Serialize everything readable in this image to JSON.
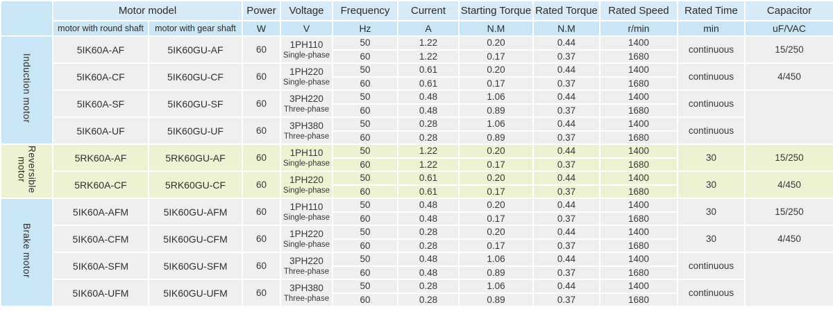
{
  "colors": {
    "blue_top": "#d6eaf7",
    "blue": "#c9e6f7",
    "gray": "#efefef",
    "green": "#edf2d0",
    "grid": "#ffffff",
    "text": "#2e2e2e"
  },
  "header": {
    "motor_model": "Motor model",
    "round_shaft": "motor with round shaft",
    "gear_shaft": "motor with gear shaft",
    "columns": [
      "Power",
      "Voltage",
      "Frequency",
      "Current",
      "Starting Torque",
      "Rated Torque",
      "Rated Speed",
      "Rated Time",
      "Capacitor"
    ],
    "units": [
      "W",
      "V",
      "Hz",
      "A",
      "N.M",
      "N.M",
      "r/min",
      "min",
      "uF/VAC"
    ]
  },
  "sections": [
    {
      "id": "induction",
      "label": "Induction motor",
      "theme": "gray",
      "label_theme": "blue",
      "groups": [
        {
          "round": "5IK60A-AF",
          "gear": "5IK60GU-AF",
          "power": "60",
          "voltage": "1PH110",
          "phase": "Single-phase",
          "rows": [
            [
              "50",
              "1.22",
              "0.20",
              "0.44",
              "1400"
            ],
            [
              "60",
              "1.22",
              "0.17",
              "0.37",
              "1680"
            ]
          ],
          "time": "continuous",
          "cap": "15/250",
          "cap_span": 2
        },
        {
          "round": "5IK60A-CF",
          "gear": "5IK60GU-CF",
          "power": "60",
          "voltage": "1PH220",
          "phase": "Single-phase",
          "rows": [
            [
              "50",
              "0.61",
              "0.20",
              "0.44",
              "1400"
            ],
            [
              "60",
              "0.61",
              "0.17",
              "0.37",
              "1680"
            ]
          ],
          "time": "continuous",
          "cap": "4/450",
          "cap_span": 2
        },
        {
          "round": "5IK60A-SF",
          "gear": "5IK60GU-SF",
          "power": "60",
          "voltage": "3PH220",
          "phase": "Three-phase",
          "rows": [
            [
              "50",
              "0.48",
              "1.06",
              "0.44",
              "1400"
            ],
            [
              "60",
              "0.48",
              "0.89",
              "0.37",
              "1680"
            ]
          ],
          "time": "continuous",
          "cap": "",
          "cap_span": 4
        },
        {
          "round": "5IK60A-UF",
          "gear": "5IK60GU-UF",
          "power": "60",
          "voltage": "3PH380",
          "phase": "Three-phase",
          "rows": [
            [
              "50",
              "0.28",
              "1.06",
              "0.44",
              "1400"
            ],
            [
              "60",
              "0.28",
              "0.89",
              "0.37",
              "1680"
            ]
          ],
          "time": "continuous",
          "cap": null
        }
      ]
    },
    {
      "id": "reversible",
      "label": "Reversible\nmotor",
      "theme": "green",
      "label_theme": "green",
      "groups": [
        {
          "round": "5RK60A-AF",
          "gear": "5RK60GU-AF",
          "power": "60",
          "voltage": "1PH110",
          "phase": "Single-phase",
          "rows": [
            [
              "50",
              "1.22",
              "0.20",
              "0.44",
              "1400"
            ],
            [
              "60",
              "1.22",
              "0.17",
              "0.37",
              "1680"
            ]
          ],
          "time": "30",
          "cap": "15/250",
          "cap_span": 2
        },
        {
          "round": "5RK60A-CF",
          "gear": "5RK60GU-CF",
          "power": "60",
          "voltage": "1PH220",
          "phase": "Single-phase",
          "rows": [
            [
              "50",
              "0.61",
              "0.20",
              "0.44",
              "1400"
            ],
            [
              "60",
              "0.61",
              "0.17",
              "0.37",
              "1680"
            ]
          ],
          "time": "30",
          "cap": "4/450",
          "cap_span": 2
        }
      ]
    },
    {
      "id": "brake",
      "label": "Brake motor",
      "theme": "gray",
      "label_theme": "blue",
      "groups": [
        {
          "round": "5IK60A-AFM",
          "gear": "5IK60GU-AFM",
          "power": "60",
          "voltage": "1PH110",
          "phase": "Single-phase",
          "rows": [
            [
              "50",
              "0.48",
              "0.20",
              "0.44",
              "1400"
            ],
            [
              "60",
              "0.48",
              "0.17",
              "0.37",
              "1680"
            ]
          ],
          "time": "30",
          "cap": "15/250",
          "cap_span": 2
        },
        {
          "round": "5IK60A-CFM",
          "gear": "5IK60GU-CFM",
          "power": "60",
          "voltage": "1PH220",
          "phase": "Single-phase",
          "rows": [
            [
              "50",
              "0.28",
              "0.20",
              "0.44",
              "1400"
            ],
            [
              "60",
              "0.28",
              "0.17",
              "0.37",
              "1680"
            ]
          ],
          "time": "30",
          "cap": "4/450",
          "cap_span": 2
        },
        {
          "round": "5IK60A-SFM",
          "gear": "5IK60GU-SFM",
          "power": "60",
          "voltage": "3PH220",
          "phase": "Three-phase",
          "rows": [
            [
              "50",
              "0.48",
              "1.06",
              "0.44",
              "1400"
            ],
            [
              "60",
              "0.48",
              "0.89",
              "0.37",
              "1680"
            ]
          ],
          "time": "continuous",
          "cap": "",
          "cap_span": 4
        },
        {
          "round": "5IK60A-UFM",
          "gear": "5IK60GU-UFM",
          "power": "60",
          "voltage": "3PH380",
          "phase": "Three-phase",
          "rows": [
            [
              "50",
              "0.28",
              "1.06",
              "0.44",
              "1400"
            ],
            [
              "60",
              "0.28",
              "0.89",
              "0.37",
              "1680"
            ]
          ],
          "time": "continuous",
          "cap": null
        }
      ]
    }
  ]
}
